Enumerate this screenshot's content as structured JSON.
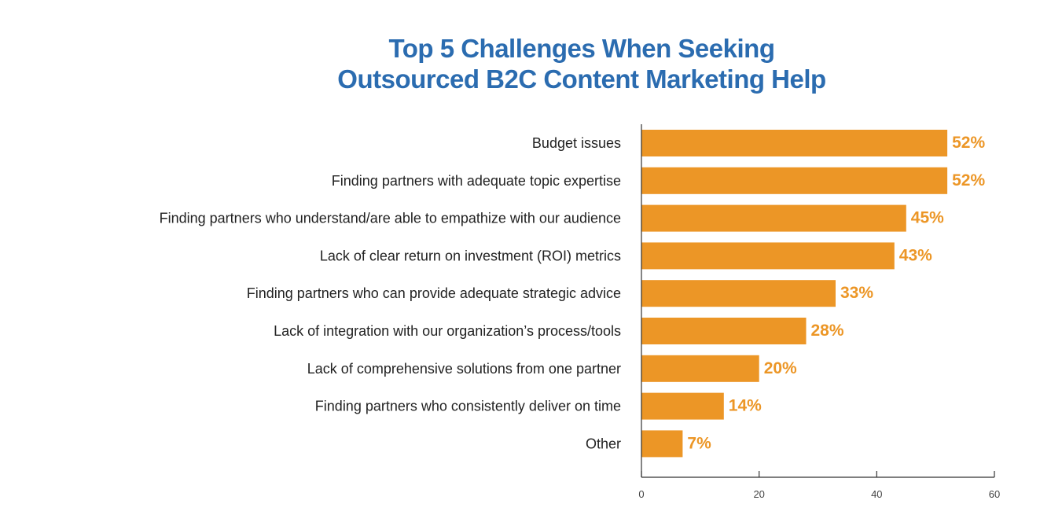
{
  "chart_data": {
    "type": "bar",
    "orientation": "horizontal",
    "title": "Top 5 Challenges When Seeking Outsourced B2C Content Marketing Help",
    "title_lines": [
      "Top 5 Challenges When Seeking",
      "Outsourced B2C Content Marketing Help"
    ],
    "categories": [
      "Budget issues",
      "Finding partners with adequate topic expertise",
      "Finding partners who understand/are able to empathize with our audience",
      "Lack of clear return on investment (ROI) metrics",
      "Finding partners who can provide adequate strategic advice",
      "Lack of integration with our organization’s process/tools",
      "Lack of comprehensive solutions from one partner",
      "Finding partners who consistently deliver on time",
      "Other"
    ],
    "values": [
      52,
      52,
      45,
      43,
      33,
      28,
      20,
      14,
      7
    ],
    "value_labels": [
      "52%",
      "52%",
      "45%",
      "43%",
      "33%",
      "28%",
      "20%",
      "14%",
      "7%"
    ],
    "xlabel": "",
    "ylabel": "",
    "xlim": [
      0,
      60
    ],
    "xticks": [
      "0",
      "20",
      "40",
      "60"
    ],
    "grid": false,
    "legend": "none",
    "colors": {
      "bar": "#ec9626",
      "value_label": "#ec9626",
      "title": "#2b6cb0",
      "axis": "#333333",
      "category_text": "#222222"
    }
  }
}
